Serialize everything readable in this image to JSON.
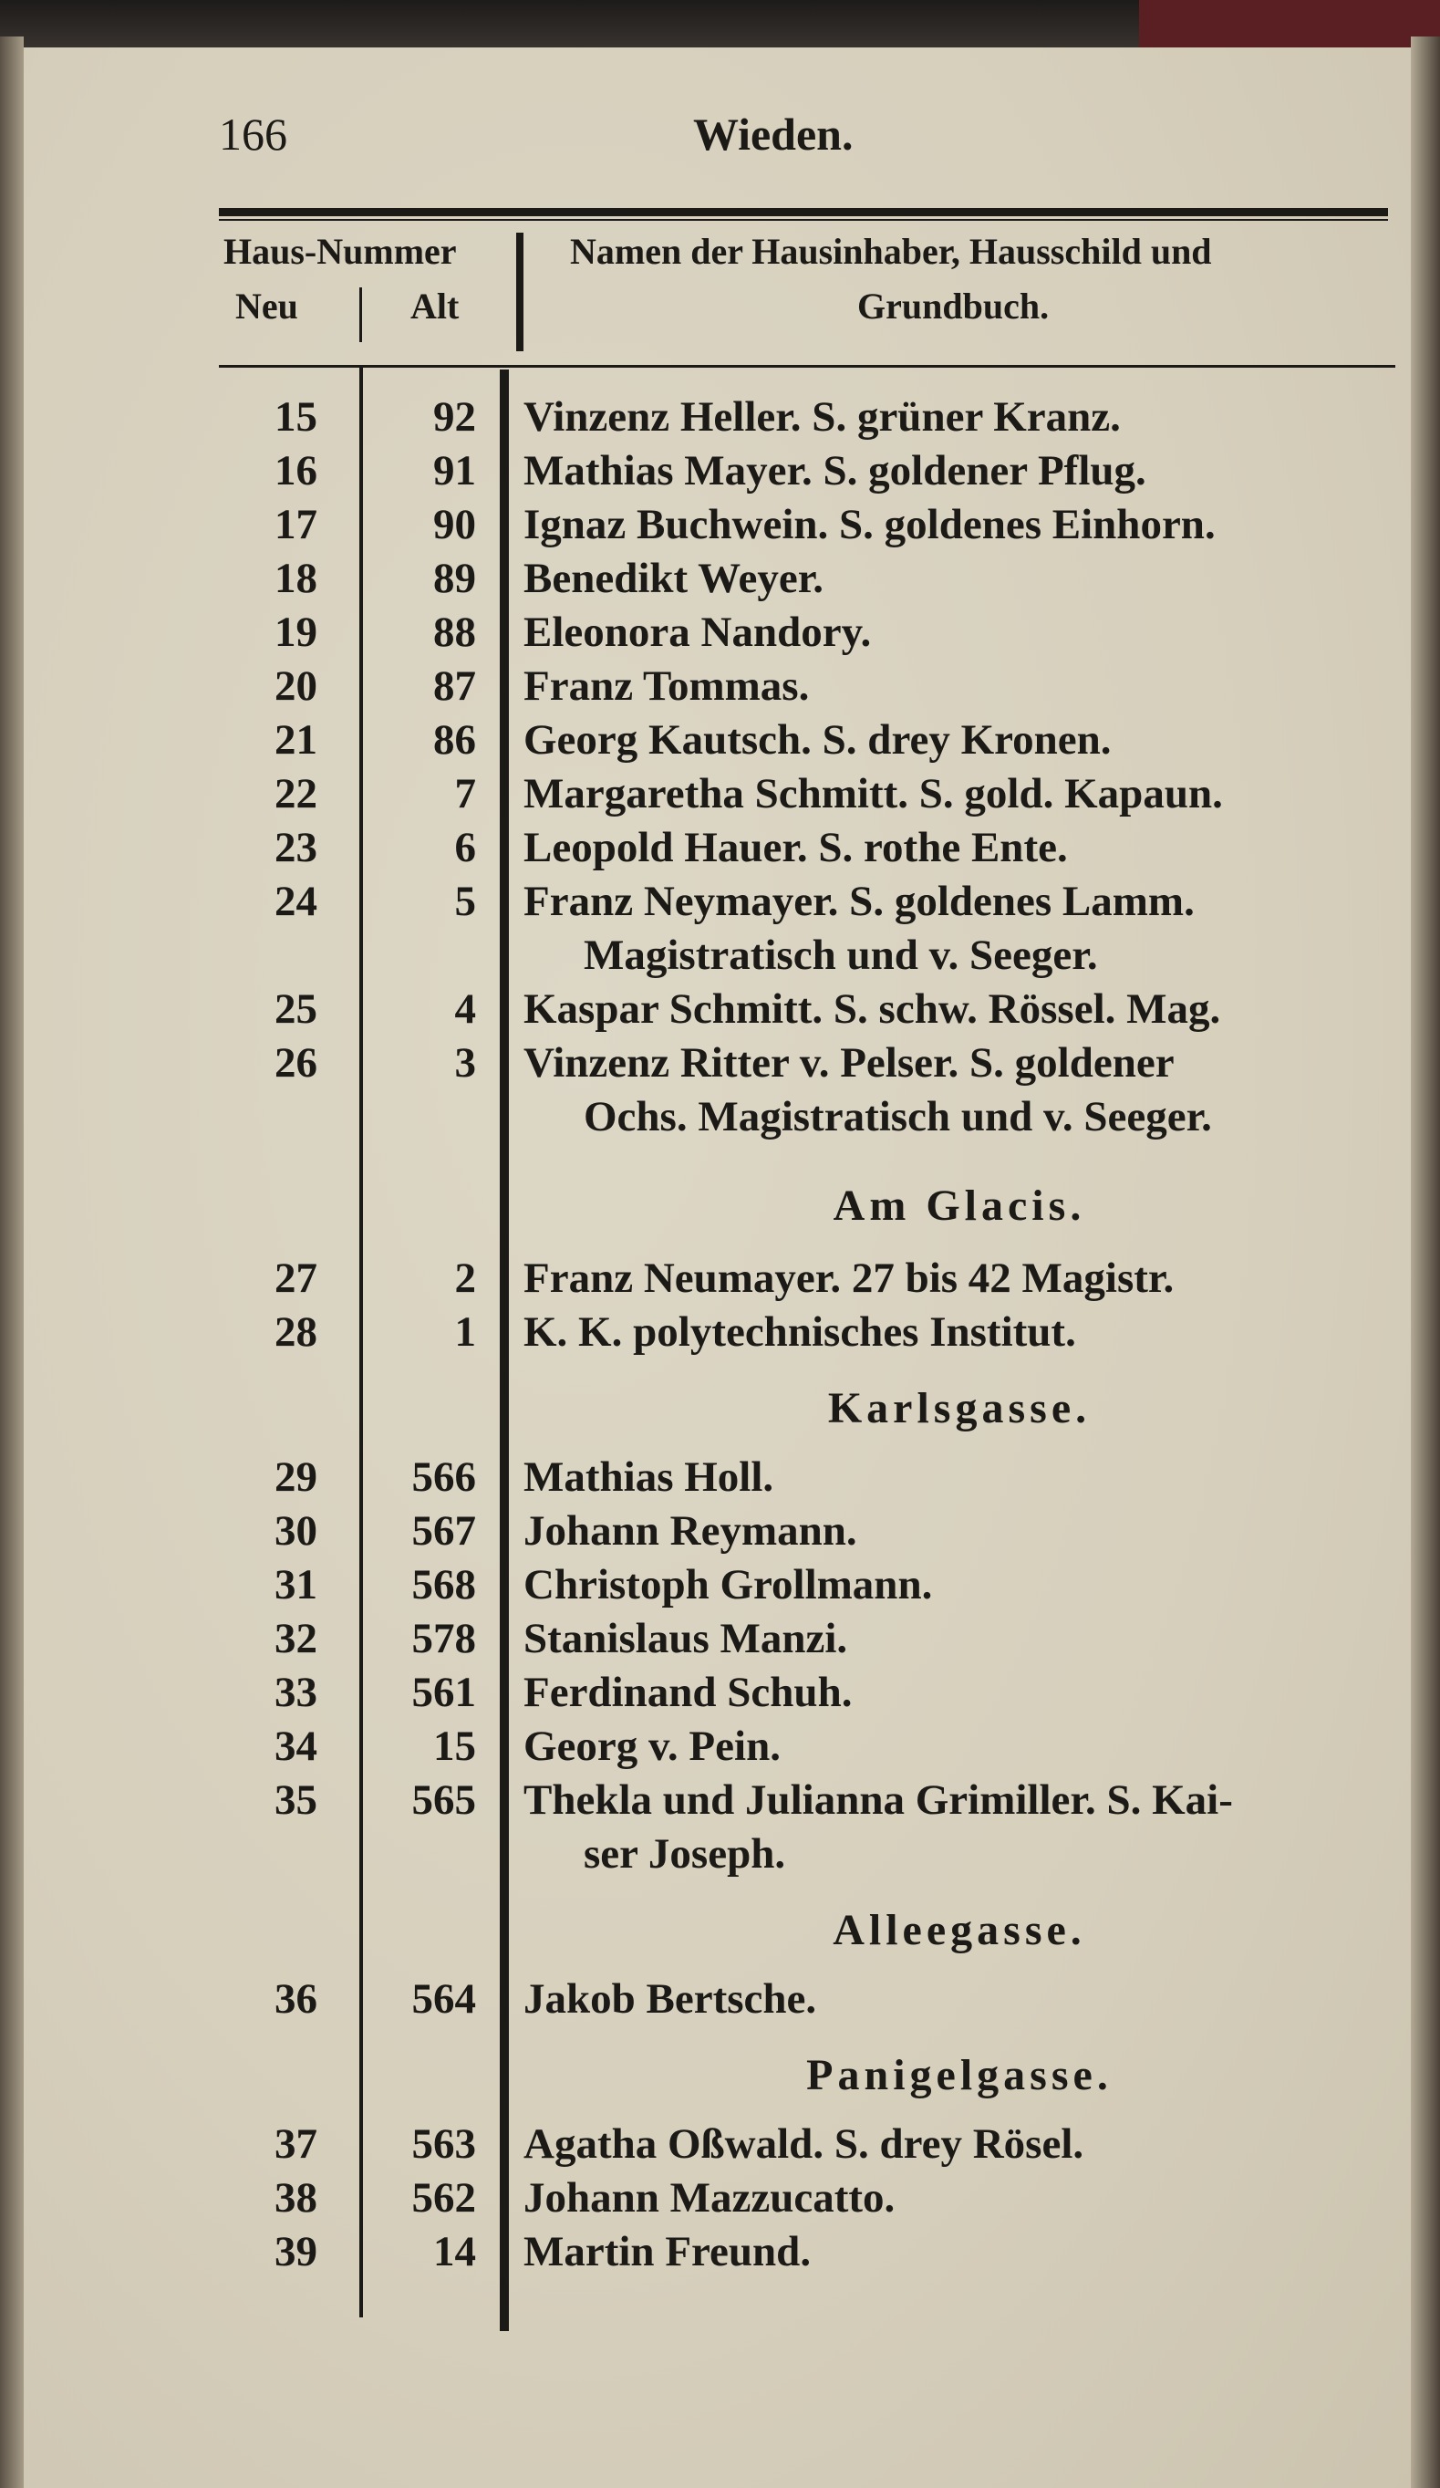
{
  "page_number": "166",
  "running_head": "Wieden.",
  "header": {
    "house_number": "Haus-Nummer",
    "new": "Neu",
    "old": "Alt",
    "names_line1": "Namen der Hausinhaber, Hausschild und",
    "names_line2": "Grundbuch."
  },
  "lines": [
    {
      "type": "entry",
      "neu": "15",
      "alt": "92",
      "text": "Vinzenz Heller. S. grüner Kranz."
    },
    {
      "type": "entry",
      "neu": "16",
      "alt": "91",
      "text": "Mathias Mayer. S. goldener Pflug."
    },
    {
      "type": "entry",
      "neu": "17",
      "alt": "90",
      "text": "Ignaz Buchwein. S. goldenes Einhorn."
    },
    {
      "type": "entry",
      "neu": "18",
      "alt": "89",
      "text": "Benedikt Weyer."
    },
    {
      "type": "entry",
      "neu": "19",
      "alt": "88",
      "text": "Eleonora Nandory."
    },
    {
      "type": "entry",
      "neu": "20",
      "alt": "87",
      "text": "Franz Tommas."
    },
    {
      "type": "entry",
      "neu": "21",
      "alt": "86",
      "text": "Georg Kautsch. S. drey Kronen."
    },
    {
      "type": "entry",
      "neu": "22",
      "alt": "7",
      "text": "Margaretha Schmitt. S. gold. Kapaun."
    },
    {
      "type": "entry",
      "neu": "23",
      "alt": "6",
      "text": "Leopold Hauer. S. rothe Ente."
    },
    {
      "type": "entry",
      "neu": "24",
      "alt": "5",
      "text": "Franz Neymayer. S. goldenes Lamm."
    },
    {
      "type": "cont",
      "neu": "",
      "alt": "",
      "text": "Magistratisch und v. Seeger."
    },
    {
      "type": "entry",
      "neu": "25",
      "alt": "4",
      "text": "Kaspar Schmitt. S. schw. Rössel. Mag."
    },
    {
      "type": "entry",
      "neu": "26",
      "alt": "3",
      "text": "Vinzenz Ritter v. Pelser. S. goldener"
    },
    {
      "type": "cont",
      "neu": "",
      "alt": "",
      "text": "Ochs. Magistratisch und v. Seeger."
    },
    {
      "type": "heading",
      "text": "Am Glacis.",
      "first": true
    },
    {
      "type": "entry",
      "neu": "27",
      "alt": "2",
      "text": "Franz Neumayer. 27 bis 42 Magistr."
    },
    {
      "type": "entry",
      "neu": "28",
      "alt": "1",
      "text": "K. K. polytechnisches Institut."
    },
    {
      "type": "heading",
      "text": "Karlsgasse."
    },
    {
      "type": "entry",
      "neu": "29",
      "alt": "566",
      "text": "Mathias Holl."
    },
    {
      "type": "entry",
      "neu": "30",
      "alt": "567",
      "text": "Johann Reymann."
    },
    {
      "type": "entry",
      "neu": "31",
      "alt": "568",
      "text": "Christoph Grollmann."
    },
    {
      "type": "entry",
      "neu": "32",
      "alt": "578",
      "text": "Stanislaus Manzi."
    },
    {
      "type": "entry",
      "neu": "33",
      "alt": "561",
      "text": "Ferdinand Schuh."
    },
    {
      "type": "entry",
      "neu": "34",
      "alt": "15",
      "text": "Georg v. Pein."
    },
    {
      "type": "entry",
      "neu": "35",
      "alt": "565",
      "text": "Thekla und Julianna Grimiller. S. Kai-"
    },
    {
      "type": "cont",
      "neu": "",
      "alt": "",
      "text": "ser Joseph."
    },
    {
      "type": "heading",
      "text": "Alleegasse."
    },
    {
      "type": "entry",
      "neu": "36",
      "alt": "564",
      "text": "Jakob Bertsche."
    },
    {
      "type": "heading",
      "text": "Panigelgasse."
    },
    {
      "type": "entry",
      "neu": "37",
      "alt": "563",
      "text": "Agatha Oßwald. S. drey Rösel."
    },
    {
      "type": "entry",
      "neu": "38",
      "alt": "562",
      "text": "Johann Mazzucatto."
    },
    {
      "type": "entry",
      "neu": "39",
      "alt": "14",
      "text": "Martin Freund."
    }
  ]
}
